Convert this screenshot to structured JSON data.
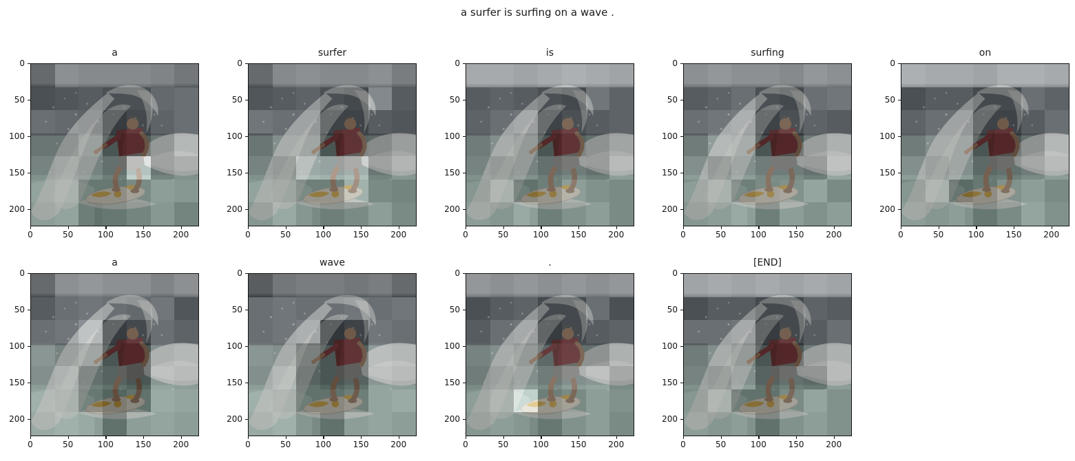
{
  "figure": {
    "caption": "a surfer is surfing on a wave .",
    "tokens": [
      "a",
      "surfer",
      "is",
      "surfing",
      "on",
      "a",
      "wave",
      ".",
      "[END]"
    ]
  },
  "axes": {
    "x_ticks": [
      0,
      50,
      100,
      150,
      200
    ],
    "y_ticks": [
      0,
      50,
      100,
      150,
      200
    ],
    "x_range": [
      0,
      224
    ],
    "y_range": [
      0,
      224
    ]
  },
  "palette": {
    "sky": "#8f959b",
    "horizon": "#6e747a",
    "ocean-dark": "#47525b",
    "water-mid": "#7a938f",
    "water-light": "#8fb0a7",
    "water-lighter": "#a6c6bc",
    "foam": "#e4e8e2",
    "shirt": "#8c3538",
    "skin": "#ab8160",
    "skin-shadow": "#8f6a4e",
    "shorts": "#8b8d89",
    "board": "#e0dbc9",
    "board-accent": "#d7a634",
    "hair": "#7b6245",
    "spine": "#121212",
    "text": "#1a1a1a"
  },
  "overlay": {
    "alpha": 0.5,
    "grid": [
      7,
      7
    ]
  },
  "chart_data": [
    {
      "type": "heatmap",
      "title": "a",
      "row": 0,
      "col": 0,
      "x_range": [
        0,
        224
      ],
      "y_range": [
        0,
        224
      ],
      "attention": [
        [
          0.25,
          0.55,
          0.5,
          0.5,
          0.5,
          0.45,
          0.35
        ],
        [
          0.3,
          0.35,
          0.4,
          0.3,
          0.3,
          0.5,
          0.55
        ],
        [
          0.55,
          0.5,
          0.45,
          0.15,
          0.25,
          0.45,
          0.55
        ],
        [
          0.35,
          0.35,
          0.5,
          0.1,
          0.15,
          0.35,
          0.6
        ],
        [
          0.45,
          0.5,
          0.45,
          0.3,
          0.95,
          0.35,
          0.45
        ],
        [
          0.5,
          0.55,
          0.25,
          0.25,
          0.4,
          0.55,
          0.5
        ],
        [
          0.45,
          0.5,
          0.2,
          0.25,
          0.35,
          0.5,
          0.35
        ]
      ]
    },
    {
      "type": "heatmap",
      "title": "surfer",
      "row": 0,
      "col": 1,
      "x_range": [
        0,
        224
      ],
      "y_range": [
        0,
        224
      ],
      "attention": [
        [
          0.25,
          0.5,
          0.55,
          0.5,
          0.5,
          0.55,
          0.4
        ],
        [
          0.35,
          0.4,
          0.45,
          0.3,
          0.25,
          0.75,
          0.4
        ],
        [
          0.6,
          0.55,
          0.55,
          0.2,
          0.2,
          0.4,
          0.35
        ],
        [
          0.35,
          0.55,
          0.55,
          0.1,
          0.2,
          0.25,
          0.4
        ],
        [
          0.45,
          0.4,
          0.75,
          0.7,
          0.8,
          0.35,
          0.5
        ],
        [
          0.5,
          0.45,
          0.3,
          0.3,
          0.7,
          0.4,
          0.35
        ],
        [
          0.4,
          0.55,
          0.4,
          0.3,
          0.4,
          0.55,
          0.4
        ]
      ]
    },
    {
      "type": "heatmap",
      "title": "is",
      "row": 0,
      "col": 2,
      "x_range": [
        0,
        224
      ],
      "y_range": [
        0,
        224
      ],
      "attention": [
        [
          0.75,
          0.75,
          0.7,
          0.75,
          0.8,
          0.75,
          0.7
        ],
        [
          0.4,
          0.45,
          0.4,
          0.3,
          0.25,
          0.6,
          0.45
        ],
        [
          0.45,
          0.55,
          0.6,
          0.2,
          0.3,
          0.4,
          0.45
        ],
        [
          0.4,
          0.55,
          0.45,
          0.1,
          0.2,
          0.3,
          0.45
        ],
        [
          0.45,
          0.4,
          0.45,
          0.3,
          0.4,
          0.3,
          0.55
        ],
        [
          0.4,
          0.55,
          0.2,
          0.3,
          0.55,
          0.45,
          0.4
        ],
        [
          0.45,
          0.4,
          0.55,
          0.3,
          0.45,
          0.55,
          0.4
        ]
      ]
    },
    {
      "type": "heatmap",
      "title": "surfing",
      "row": 0,
      "col": 3,
      "x_range": [
        0,
        224
      ],
      "y_range": [
        0,
        224
      ],
      "attention": [
        [
          0.55,
          0.6,
          0.55,
          0.55,
          0.5,
          0.6,
          0.55
        ],
        [
          0.4,
          0.45,
          0.55,
          0.3,
          0.25,
          0.55,
          0.6
        ],
        [
          0.55,
          0.6,
          0.65,
          0.2,
          0.3,
          0.45,
          0.4
        ],
        [
          0.4,
          0.65,
          0.6,
          0.1,
          0.1,
          0.4,
          0.55
        ],
        [
          0.55,
          0.4,
          0.55,
          0.4,
          0.4,
          0.3,
          0.6
        ],
        [
          0.45,
          0.55,
          0.3,
          0.4,
          0.45,
          0.6,
          0.4
        ],
        [
          0.4,
          0.45,
          0.55,
          0.3,
          0.55,
          0.45,
          0.55
        ]
      ]
    },
    {
      "type": "heatmap",
      "title": "on",
      "row": 0,
      "col": 4,
      "x_range": [
        0,
        224
      ],
      "y_range": [
        0,
        224
      ],
      "attention": [
        [
          0.8,
          0.75,
          0.75,
          0.7,
          0.8,
          0.8,
          0.75
        ],
        [
          0.3,
          0.4,
          0.4,
          0.25,
          0.25,
          0.55,
          0.45
        ],
        [
          0.45,
          0.55,
          0.55,
          0.2,
          0.2,
          0.4,
          0.55
        ],
        [
          0.4,
          0.55,
          0.55,
          0.1,
          0.1,
          0.3,
          0.6
        ],
        [
          0.55,
          0.45,
          0.55,
          0.25,
          0.3,
          0.4,
          0.55
        ],
        [
          0.4,
          0.55,
          0.15,
          0.25,
          0.45,
          0.55,
          0.4
        ],
        [
          0.45,
          0.4,
          0.45,
          0.25,
          0.4,
          0.6,
          0.45
        ]
      ]
    },
    {
      "type": "heatmap",
      "title": "a",
      "row": 1,
      "col": 0,
      "x_range": [
        0,
        224
      ],
      "y_range": [
        0,
        224
      ],
      "attention": [
        [
          0.25,
          0.55,
          0.6,
          0.55,
          0.55,
          0.45,
          0.55
        ],
        [
          0.4,
          0.55,
          0.6,
          0.55,
          0.5,
          0.6,
          0.35
        ],
        [
          0.55,
          0.6,
          0.8,
          0.15,
          0.25,
          0.55,
          0.45
        ],
        [
          0.6,
          0.45,
          0.55,
          0.1,
          0.1,
          0.55,
          0.6
        ],
        [
          0.55,
          0.6,
          0.3,
          0.2,
          0.1,
          0.6,
          0.55
        ],
        [
          0.6,
          0.55,
          0.25,
          0.1,
          0.2,
          0.65,
          0.6
        ],
        [
          0.55,
          0.6,
          0.55,
          0.2,
          0.55,
          0.6,
          0.55
        ]
      ]
    },
    {
      "type": "heatmap",
      "title": "wave",
      "row": 1,
      "col": 1,
      "x_range": [
        0,
        224
      ],
      "y_range": [
        0,
        224
      ],
      "attention": [
        [
          0.15,
          0.35,
          0.4,
          0.4,
          0.35,
          0.4,
          0.25
        ],
        [
          0.55,
          0.6,
          0.55,
          0.55,
          0.6,
          0.55,
          0.6
        ],
        [
          0.55,
          0.6,
          0.65,
          0.1,
          0.2,
          0.6,
          0.55
        ],
        [
          0.6,
          0.55,
          0.25,
          0.1,
          0.2,
          0.65,
          0.6
        ],
        [
          0.55,
          0.65,
          0.2,
          0.1,
          0.2,
          0.6,
          0.55
        ],
        [
          0.6,
          0.55,
          0.2,
          0.2,
          0.3,
          0.6,
          0.65
        ],
        [
          0.55,
          0.6,
          0.4,
          0.2,
          0.55,
          0.6,
          0.55
        ]
      ]
    },
    {
      "type": "heatmap",
      "title": ".",
      "row": 1,
      "col": 2,
      "x_range": [
        0,
        224
      ],
      "y_range": [
        0,
        224
      ],
      "attention": [
        [
          0.6,
          0.55,
          0.6,
          0.55,
          0.6,
          0.55,
          0.6
        ],
        [
          0.3,
          0.4,
          0.45,
          0.25,
          0.25,
          0.55,
          0.3
        ],
        [
          0.4,
          0.55,
          0.6,
          0.15,
          0.25,
          0.4,
          0.45
        ],
        [
          0.45,
          0.55,
          0.45,
          0.25,
          0.3,
          0.3,
          0.55
        ],
        [
          0.4,
          0.45,
          0.55,
          0.4,
          0.55,
          0.6,
          0.4
        ],
        [
          0.45,
          0.55,
          0.95,
          0.3,
          0.4,
          0.55,
          0.45
        ],
        [
          0.4,
          0.45,
          0.4,
          0.25,
          0.45,
          0.55,
          0.4
        ]
      ]
    },
    {
      "type": "heatmap",
      "title": "[END]",
      "row": 1,
      "col": 3,
      "x_range": [
        0,
        224
      ],
      "y_range": [
        0,
        224
      ],
      "attention": [
        [
          0.7,
          0.75,
          0.7,
          0.75,
          0.7,
          0.75,
          0.7
        ],
        [
          0.3,
          0.4,
          0.4,
          0.25,
          0.25,
          0.45,
          0.4
        ],
        [
          0.55,
          0.55,
          0.6,
          0.15,
          0.25,
          0.4,
          0.55
        ],
        [
          0.4,
          0.55,
          0.45,
          0.1,
          0.1,
          0.4,
          0.55
        ],
        [
          0.45,
          0.4,
          0.55,
          0.2,
          0.3,
          0.25,
          0.55
        ],
        [
          0.4,
          0.55,
          0.2,
          0.2,
          0.4,
          0.6,
          0.45
        ],
        [
          0.45,
          0.4,
          0.45,
          0.2,
          0.45,
          0.55,
          0.45
        ]
      ]
    }
  ]
}
